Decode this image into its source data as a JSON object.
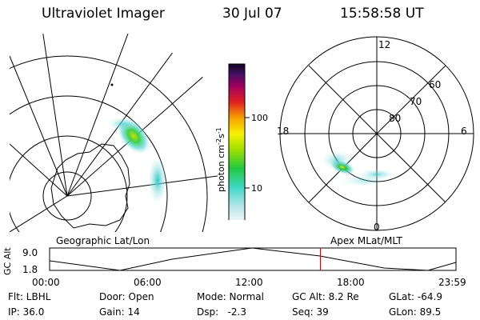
{
  "header": {
    "title": "Ultraviolet Imager",
    "date": "30 Jul 07",
    "time": "15:58:58 UT"
  },
  "colorbar": {
    "unit": "photon cm",
    "unit_exp1": "-2",
    "unit_mid": "s",
    "unit_exp2": "-1",
    "tick_high": "100",
    "tick_low": "10"
  },
  "left_panel": {
    "label": "Geographic Lat/Lon"
  },
  "right_panel": {
    "label": "Apex MLat/MLT",
    "mlt_top": "12",
    "mlt_left": "18",
    "mlt_right": "6",
    "mlt_bottom": "0",
    "lat_labels": [
      "60",
      "70",
      "80"
    ]
  },
  "altitude_plot": {
    "ylabel": "GC Alt",
    "y_top": "9.0",
    "y_bottom": "1.8",
    "x_ticks": [
      "00:00",
      "06:00",
      "12:00",
      "18:00",
      "23:59"
    ],
    "current_time_hours": 15.98,
    "cursor_color": "#cc0000"
  },
  "info": {
    "flt": "Flt: LBHL",
    "ip": "IP: 36.0",
    "door": "Door: Open",
    "gain": "Gain: 14",
    "mode": "Mode: Normal",
    "dsp": "Dsp:   -2.3",
    "gcalt": "GC Alt: 8.2 Re",
    "seq": "Seq: 39",
    "glat": "GLat: -64.9",
    "glon": "GLon: 89.5"
  }
}
